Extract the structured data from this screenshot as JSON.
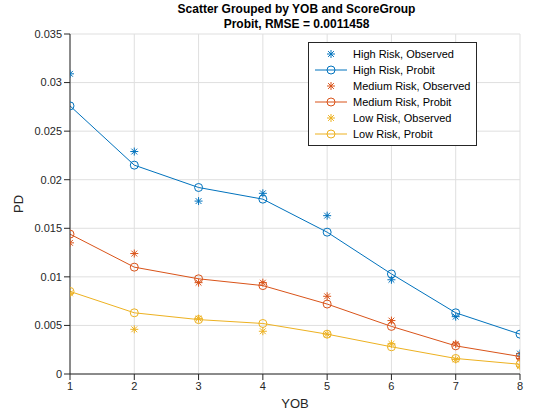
{
  "chart_data": {
    "type": "line",
    "title": "Scatter Grouped by YOB and ScoreGroup",
    "subtitle": "Probit, RMSE = 0.0011458",
    "x_label": "YOB",
    "y_label": "PD",
    "x": [
      1,
      2,
      3,
      4,
      5,
      6,
      7,
      8
    ],
    "xlim": [
      1,
      8
    ],
    "xticks": [
      1,
      2,
      3,
      4,
      5,
      6,
      7,
      8
    ],
    "ylim": [
      0,
      0.035
    ],
    "yticks": [
      0,
      0.005,
      0.01,
      0.015,
      0.02,
      0.025,
      0.03,
      0.035
    ],
    "grid": true,
    "legend": "top-right",
    "series": [
      {
        "name": "High Risk, Observed",
        "color": "#0072bd",
        "type": "scatter",
        "marker": "asterisk",
        "line_style": "none",
        "values": [
          0.0309,
          0.0229,
          0.0178,
          0.0186,
          0.0163,
          0.0097,
          0.0059,
          0.0021
        ]
      },
      {
        "name": "High Risk, Probit",
        "color": "#0072bd",
        "type": "line",
        "marker": "circle",
        "line_style": "solid",
        "values": [
          0.0276,
          0.0215,
          0.0192,
          0.018,
          0.0146,
          0.0103,
          0.0063,
          0.0041
        ]
      },
      {
        "name": "Medium Risk, Observed",
        "color": "#d95319",
        "type": "scatter",
        "marker": "asterisk",
        "line_style": "none",
        "values": [
          0.0135,
          0.0124,
          0.0094,
          0.0094,
          0.008,
          0.0055,
          0.0031,
          0.0016
        ]
      },
      {
        "name": "Medium Risk, Probit",
        "color": "#d95319",
        "type": "line",
        "marker": "circle",
        "line_style": "solid",
        "values": [
          0.0144,
          0.011,
          0.0098,
          0.0091,
          0.0072,
          0.0049,
          0.0029,
          0.0018
        ]
      },
      {
        "name": "Low Risk, Observed",
        "color": "#edb120",
        "type": "scatter",
        "marker": "asterisk",
        "line_style": "none",
        "values": [
          0.0083,
          0.0046,
          0.0057,
          0.0044,
          0.0041,
          0.0031,
          0.0015,
          0.0008
        ]
      },
      {
        "name": "Low Risk, Probit",
        "color": "#edb120",
        "type": "line",
        "marker": "circle",
        "line_style": "solid",
        "values": [
          0.0085,
          0.0063,
          0.0056,
          0.0052,
          0.0041,
          0.0028,
          0.0016,
          0.001
        ]
      }
    ]
  }
}
